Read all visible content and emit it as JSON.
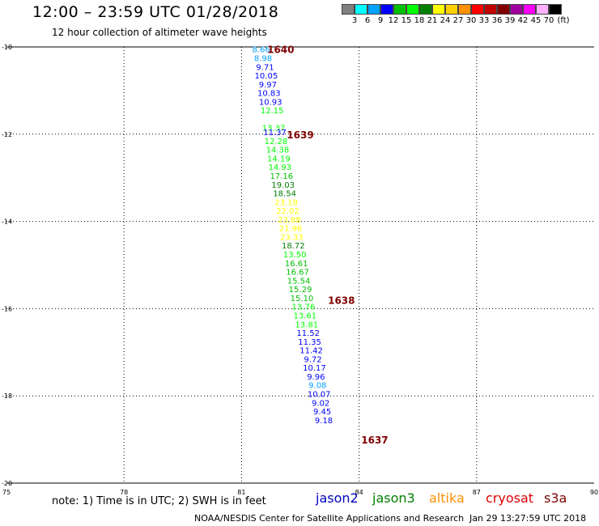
{
  "header": {
    "title": "12:00 – 23:59 UTC 01/28/2018",
    "subtitle": "12 hour collection of altimeter wave heights"
  },
  "color_scale": {
    "swatches": [
      "#808080",
      "#00ffff",
      "#00a0ff",
      "#0000ff",
      "#00c000",
      "#00ff00",
      "#008000",
      "#ffff00",
      "#ffd000",
      "#ff9000",
      "#ff0000",
      "#c00000",
      "#800000",
      "#a000a0",
      "#ff00ff",
      "#ffb0ff",
      "#000000"
    ],
    "labels": [
      "3",
      "6",
      "9",
      "12",
      "15",
      "18",
      "21",
      "24",
      "27",
      "30",
      "33",
      "36",
      "39",
      "42",
      "45",
      "70",
      "(ft)"
    ]
  },
  "chart_data": {
    "type": "scatter",
    "xlim": [
      75,
      90
    ],
    "ylim": [
      -20,
      -10
    ],
    "x_ticks": [
      "75",
      "78",
      "81",
      "84",
      "87",
      "90"
    ],
    "y_ticks": [
      "-10",
      "-12",
      "-14",
      "-16",
      "-18",
      "-20"
    ],
    "grid": true,
    "time_labels": [
      {
        "text": "1640",
        "lon": 82.0,
        "lat": -10.05,
        "color": "#800000"
      },
      {
        "text": "1639",
        "lon": 82.5,
        "lat": -12.0,
        "color": "#800000"
      },
      {
        "text": "1638",
        "lon": 83.55,
        "lat": -15.8,
        "color": "#800000"
      },
      {
        "text": "1637",
        "lon": 84.4,
        "lat": -19.0,
        "color": "#800000"
      }
    ],
    "points": [
      {
        "swh": "8.66",
        "lon": 81.5,
        "lat": -10.05,
        "color": "#00a0ff"
      },
      {
        "swh": "8.98",
        "lon": 81.55,
        "lat": -10.25,
        "color": "#00a0ff"
      },
      {
        "swh": "9.71",
        "lon": 81.6,
        "lat": -10.45,
        "color": "#0000ff"
      },
      {
        "swh": "10.05",
        "lon": 81.63,
        "lat": -10.65,
        "color": "#0000ff"
      },
      {
        "swh": "9.97",
        "lon": 81.67,
        "lat": -10.85,
        "color": "#0000ff"
      },
      {
        "swh": "10.83",
        "lon": 81.7,
        "lat": -11.05,
        "color": "#0000ff"
      },
      {
        "swh": "10.93",
        "lon": 81.74,
        "lat": -11.25,
        "color": "#0000ff"
      },
      {
        "swh": "12.15",
        "lon": 81.78,
        "lat": -11.45,
        "color": "#00ff00"
      },
      {
        "swh": "13.37",
        "lon": 81.82,
        "lat": -11.85,
        "color": "#00ff00"
      },
      {
        "swh": "11.37",
        "lon": 81.85,
        "lat": -11.95,
        "color": "#0000ff"
      },
      {
        "swh": "12.28",
        "lon": 81.88,
        "lat": -12.15,
        "color": "#00ff00"
      },
      {
        "swh": "14.38",
        "lon": 81.92,
        "lat": -12.35,
        "color": "#00ff00"
      },
      {
        "swh": "14.19",
        "lon": 81.95,
        "lat": -12.55,
        "color": "#00ff00"
      },
      {
        "swh": "14.93",
        "lon": 81.98,
        "lat": -12.75,
        "color": "#00ff00"
      },
      {
        "swh": "17.16",
        "lon": 82.02,
        "lat": -12.95,
        "color": "#00c000"
      },
      {
        "swh": "19.03",
        "lon": 82.06,
        "lat": -13.15,
        "color": "#008000"
      },
      {
        "swh": "18.54",
        "lon": 82.1,
        "lat": -13.35,
        "color": "#008000"
      },
      {
        "swh": "23.18",
        "lon": 82.14,
        "lat": -13.55,
        "color": "#ffff00"
      },
      {
        "swh": "22.02",
        "lon": 82.18,
        "lat": -13.75,
        "color": "#ffff00"
      },
      {
        "swh": "23.88",
        "lon": 82.22,
        "lat": -13.95,
        "color": "#ffff00"
      },
      {
        "swh": "21.96",
        "lon": 82.25,
        "lat": -14.15,
        "color": "#ffff00"
      },
      {
        "swh": "23.33",
        "lon": 82.28,
        "lat": -14.35,
        "color": "#ffff00"
      },
      {
        "swh": "18.72",
        "lon": 82.32,
        "lat": -14.55,
        "color": "#008000"
      },
      {
        "swh": "13.50",
        "lon": 82.36,
        "lat": -14.75,
        "color": "#00ff00"
      },
      {
        "swh": "16.61",
        "lon": 82.4,
        "lat": -14.95,
        "color": "#00c000"
      },
      {
        "swh": "16.67",
        "lon": 82.43,
        "lat": -15.15,
        "color": "#00c000"
      },
      {
        "swh": "15.54",
        "lon": 82.46,
        "lat": -15.35,
        "color": "#00c000"
      },
      {
        "swh": "15.29",
        "lon": 82.5,
        "lat": -15.55,
        "color": "#00c000"
      },
      {
        "swh": "15.10",
        "lon": 82.54,
        "lat": -15.75,
        "color": "#00c000"
      },
      {
        "swh": "13.76",
        "lon": 82.58,
        "lat": -15.95,
        "color": "#00ff00"
      },
      {
        "swh": "13.61",
        "lon": 82.62,
        "lat": -16.15,
        "color": "#00ff00"
      },
      {
        "swh": "13.81",
        "lon": 82.66,
        "lat": -16.35,
        "color": "#00ff00"
      },
      {
        "swh": "11.52",
        "lon": 82.7,
        "lat": -16.55,
        "color": "#0000ff"
      },
      {
        "swh": "11.35",
        "lon": 82.74,
        "lat": -16.75,
        "color": "#0000ff"
      },
      {
        "swh": "11.42",
        "lon": 82.78,
        "lat": -16.95,
        "color": "#0000ff"
      },
      {
        "swh": "9.72",
        "lon": 82.82,
        "lat": -17.15,
        "color": "#0000ff"
      },
      {
        "swh": "10.17",
        "lon": 82.86,
        "lat": -17.35,
        "color": "#0000ff"
      },
      {
        "swh": "9.96",
        "lon": 82.9,
        "lat": -17.55,
        "color": "#0000ff"
      },
      {
        "swh": "9.08",
        "lon": 82.94,
        "lat": -17.75,
        "color": "#00a0ff"
      },
      {
        "swh": "10.07",
        "lon": 82.98,
        "lat": -17.95,
        "color": "#0000ff"
      },
      {
        "swh": "9.02",
        "lon": 83.02,
        "lat": -18.15,
        "color": "#0000ff"
      },
      {
        "swh": "9.45",
        "lon": 83.06,
        "lat": -18.35,
        "color": "#0000ff"
      },
      {
        "swh": "9.18",
        "lon": 83.1,
        "lat": -18.55,
        "color": "#0000ff"
      }
    ]
  },
  "note": "note:  1) Time is in UTC;  2) SWH is in feet",
  "legend": [
    {
      "label": "jason2",
      "color": "#0000c0"
    },
    {
      "label": "jason3",
      "color": "#008000"
    },
    {
      "label": "altika",
      "color": "#ff9000"
    },
    {
      "label": "cryosat",
      "color": "#e00000"
    },
    {
      "label": "s3a",
      "color": "#800000"
    }
  ],
  "footer": {
    "credit": "NOAA/NESDIS Center for Satellite Applications and Research",
    "timestamp": "Jan 29 13:27:59 UTC 2018"
  }
}
